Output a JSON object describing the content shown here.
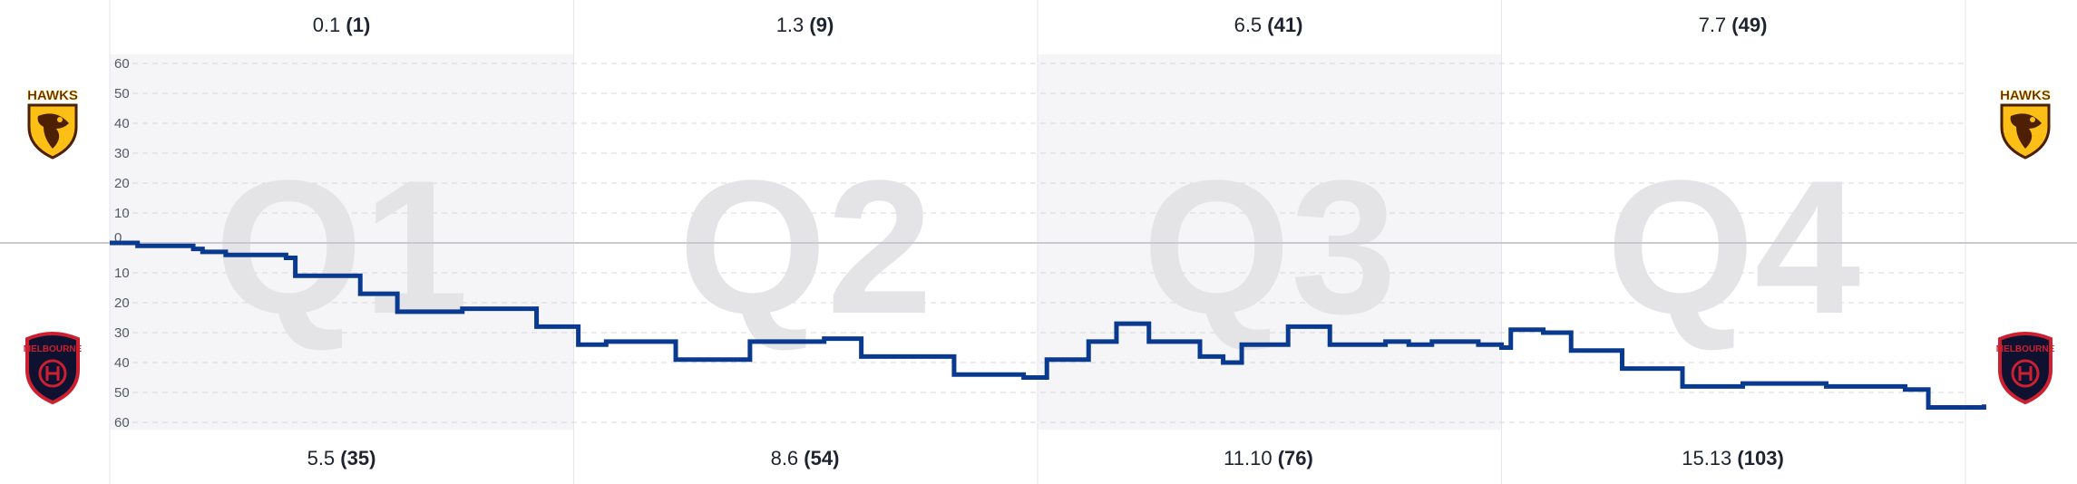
{
  "home_team": {
    "name": "HAWKS",
    "color": "#4d2004",
    "accent": "#fbbf15"
  },
  "away_team": {
    "name": "MELBOURNE",
    "color": "#0f1131",
    "accent": "#cc2031"
  },
  "quarter_scores": {
    "home": [
      {
        "goals_behinds": "0.1",
        "total": "(1)"
      },
      {
        "goals_behinds": "1.3",
        "total": "(9)"
      },
      {
        "goals_behinds": "6.5",
        "total": "(41)"
      },
      {
        "goals_behinds": "7.7",
        "total": "(49)"
      }
    ],
    "away": [
      {
        "goals_behinds": "5.5",
        "total": "(35)"
      },
      {
        "goals_behinds": "8.6",
        "total": "(54)"
      },
      {
        "goals_behinds": "11.10",
        "total": "(76)"
      },
      {
        "goals_behinds": "15.13",
        "total": "(103)"
      }
    ]
  },
  "chart_data": {
    "type": "line",
    "quarters": [
      "Q1",
      "Q2",
      "Q3",
      "Q4"
    ],
    "y_ticks_top": [
      "60",
      "50",
      "40",
      "30",
      "20",
      "10"
    ],
    "y_ticks_bottom": [
      "10",
      "20",
      "30",
      "40",
      "50",
      "60"
    ],
    "zero_label": "0",
    "ylim": [
      -60,
      60
    ],
    "grid": true,
    "line_color": "#0a3a8f",
    "series": [
      {
        "margin_steps": [
          [
            0,
            0
          ],
          [
            0.06,
            -1
          ],
          [
            0.15,
            -1
          ],
          [
            0.18,
            -2
          ],
          [
            0.2,
            -3
          ],
          [
            0.25,
            -4
          ],
          [
            0.34,
            -4
          ],
          [
            0.38,
            -5
          ],
          [
            0.4,
            -11
          ],
          [
            0.52,
            -11
          ],
          [
            0.54,
            -17
          ],
          [
            0.6,
            -17
          ],
          [
            0.62,
            -23
          ],
          [
            0.74,
            -23
          ],
          [
            0.76,
            -22
          ],
          [
            0.9,
            -22
          ],
          [
            0.92,
            -28
          ],
          [
            1.0,
            -28
          ],
          [
            1.01,
            -34
          ],
          [
            1.07,
            -33
          ],
          [
            1.2,
            -33
          ],
          [
            1.22,
            -39
          ],
          [
            1.36,
            -39
          ],
          [
            1.38,
            -33
          ],
          [
            1.52,
            -33
          ],
          [
            1.54,
            -32
          ],
          [
            1.6,
            -32
          ],
          [
            1.62,
            -38
          ],
          [
            1.8,
            -38
          ],
          [
            1.82,
            -44
          ],
          [
            1.95,
            -44
          ],
          [
            1.97,
            -45
          ],
          [
            2.0,
            -45
          ],
          [
            2.02,
            -39
          ],
          [
            2.1,
            -39
          ],
          [
            2.11,
            -33
          ],
          [
            2.16,
            -33
          ],
          [
            2.17,
            -27
          ],
          [
            2.23,
            -27
          ],
          [
            2.24,
            -33
          ],
          [
            2.34,
            -33
          ],
          [
            2.35,
            -38
          ],
          [
            2.38,
            -38
          ],
          [
            2.4,
            -40
          ],
          [
            2.43,
            -40
          ],
          [
            2.44,
            -34
          ],
          [
            2.53,
            -34
          ],
          [
            2.54,
            -28
          ],
          [
            2.62,
            -28
          ],
          [
            2.63,
            -34
          ],
          [
            2.74,
            -34
          ],
          [
            2.75,
            -33
          ],
          [
            2.78,
            -33
          ],
          [
            2.8,
            -34
          ],
          [
            2.83,
            -34
          ],
          [
            2.85,
            -33
          ],
          [
            2.94,
            -33
          ],
          [
            2.95,
            -34
          ],
          [
            3.0,
            -35
          ],
          [
            3.02,
            -29
          ],
          [
            3.07,
            -29
          ],
          [
            3.09,
            -30
          ],
          [
            3.14,
            -30
          ],
          [
            3.15,
            -36
          ],
          [
            3.24,
            -36
          ],
          [
            3.26,
            -42
          ],
          [
            3.37,
            -42
          ],
          [
            3.39,
            -48
          ],
          [
            3.5,
            -48
          ],
          [
            3.52,
            -47
          ],
          [
            3.68,
            -47
          ],
          [
            3.7,
            -48
          ],
          [
            3.85,
            -48
          ],
          [
            3.87,
            -49
          ],
          [
            3.91,
            -49
          ],
          [
            3.92,
            -55
          ],
          [
            4.03,
            -55
          ],
          [
            4.04,
            -54
          ]
        ]
      }
    ]
  }
}
